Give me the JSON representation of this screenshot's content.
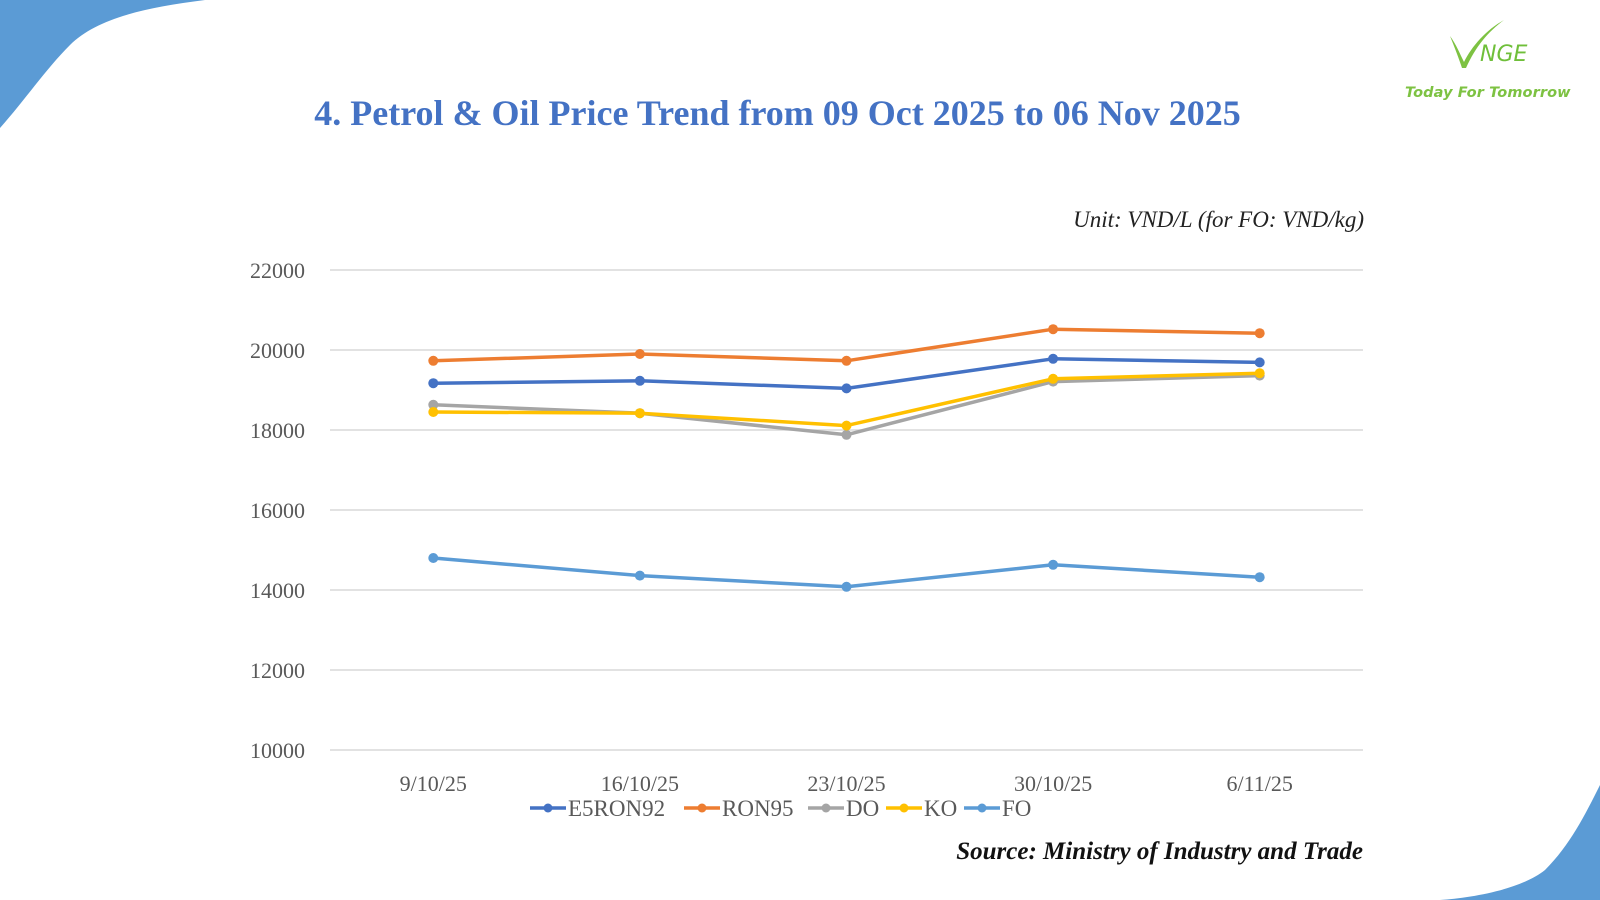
{
  "slide": {
    "title": "4. Petrol & Oil Price Trend from 09 Oct 2025 to 06 Nov 2025",
    "unit_note": "Unit: VND/L (for FO: VND/kg)",
    "source": "Source: Ministry of Industry and Trade",
    "logo": {
      "mark": "V",
      "name": "NGE",
      "tagline": "Today For Tomorrow",
      "color": "#7dc242"
    },
    "accent_color": "#5b9bd5"
  },
  "chart_data": {
    "type": "line",
    "title": "4. Petrol & Oil Price Trend from 09 Oct 2025 to 06 Nov 2025",
    "xlabel": "",
    "ylabel": "Unit: VND/L (for FO: VND/kg)",
    "categories": [
      "9/10/25",
      "16/10/25",
      "23/10/25",
      "30/10/25",
      "6/11/25"
    ],
    "ylim": [
      10000,
      22000
    ],
    "yticks": [
      10000,
      12000,
      14000,
      16000,
      18000,
      20000,
      22000
    ],
    "grid": true,
    "legend_position": "bottom",
    "series": [
      {
        "name": "E5RON92",
        "color": "#4472c4",
        "values": [
          19170,
          19230,
          19040,
          19780,
          19690
        ]
      },
      {
        "name": "RON95",
        "color": "#ed7d31",
        "values": [
          19730,
          19900,
          19730,
          20520,
          20420
        ]
      },
      {
        "name": "DO",
        "color": "#a5a5a5",
        "values": [
          18630,
          18420,
          17880,
          19210,
          19360
        ]
      },
      {
        "name": "KO",
        "color": "#ffc000",
        "values": [
          18450,
          18420,
          18110,
          19280,
          19420
        ]
      },
      {
        "name": "FO",
        "color": "#5b9bd5",
        "values": [
          14800,
          14360,
          14080,
          14630,
          14320
        ]
      }
    ]
  }
}
